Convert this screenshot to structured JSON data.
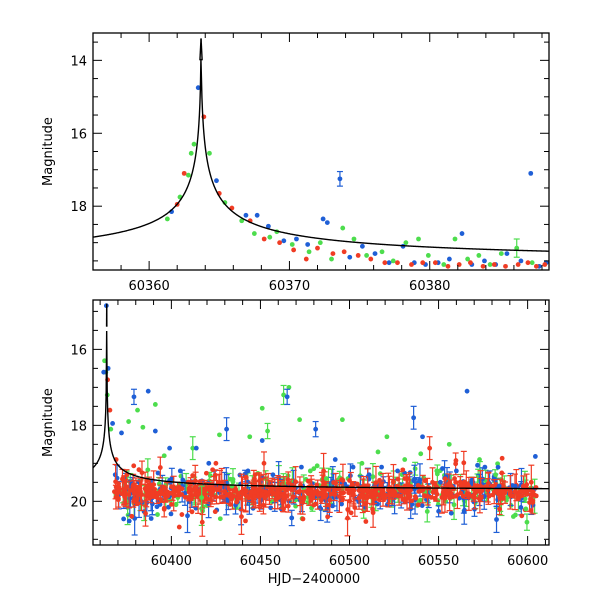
{
  "colors": {
    "green": "#4ddd4d",
    "blue": "#1f5fd6",
    "red": "#f03c24",
    "model": "#000000"
  },
  "chart_data": [
    {
      "type": "scatter",
      "ylabel": "Magnitude",
      "xlabel": "",
      "xlim": [
        60356,
        60388.5
      ],
      "ylim": [
        19.75,
        13.25
      ],
      "xticks": [
        60360,
        60370,
        60380
      ],
      "yticks": [
        14,
        16,
        18
      ],
      "peak": {
        "t0": 60363.7,
        "mag": 13.4,
        "base": 19.65
      },
      "series": [
        {
          "color": "green",
          "points": [
            [
              60361.3,
              18.35,
              0
            ],
            [
              60362.2,
              17.75,
              0
            ],
            [
              60362.8,
              17.15,
              0
            ],
            [
              60363.0,
              16.55,
              0
            ],
            [
              60363.2,
              16.3,
              0
            ],
            [
              60364.3,
              16.55,
              0
            ],
            [
              60365.4,
              17.9,
              0
            ],
            [
              60366.6,
              18.4,
              0
            ],
            [
              60367.5,
              18.75,
              0
            ],
            [
              60368.6,
              18.85,
              0
            ],
            [
              60369.1,
              18.7,
              0
            ],
            [
              60370.2,
              19.05,
              0
            ],
            [
              60371.4,
              19.25,
              0
            ],
            [
              60372.2,
              19.0,
              0
            ],
            [
              60373.0,
              19.45,
              0
            ],
            [
              60373.8,
              18.6,
              0
            ],
            [
              60374.6,
              18.9,
              0
            ],
            [
              60375.5,
              19.35,
              0
            ],
            [
              60376.6,
              19.25,
              0
            ],
            [
              60377.4,
              19.5,
              0
            ],
            [
              60378.3,
              19.0,
              0
            ],
            [
              60379.2,
              18.9,
              0
            ],
            [
              60379.9,
              19.35,
              0
            ],
            [
              60381.0,
              19.6,
              0
            ],
            [
              60381.8,
              18.9,
              0
            ],
            [
              60382.7,
              19.45,
              0
            ],
            [
              60383.5,
              19.35,
              0
            ],
            [
              60384.3,
              19.6,
              0
            ],
            [
              60385.1,
              19.3,
              0
            ],
            [
              60386.2,
              19.15,
              0.25
            ],
            [
              60387.3,
              19.55,
              0
            ]
          ]
        },
        {
          "color": "blue",
          "points": [
            [
              60361.6,
              18.15,
              0
            ],
            [
              60363.5,
              14.75,
              0
            ],
            [
              60364.8,
              17.3,
              0
            ],
            [
              60366.9,
              18.25,
              0
            ],
            [
              60367.7,
              18.25,
              0
            ],
            [
              60368.5,
              18.55,
              0
            ],
            [
              60369.6,
              18.95,
              0
            ],
            [
              60370.5,
              18.9,
              0
            ],
            [
              60371.3,
              19.05,
              0
            ],
            [
              60372.4,
              18.35,
              0
            ],
            [
              60372.7,
              18.45,
              0
            ],
            [
              60373.6,
              17.25,
              0.2
            ],
            [
              60374.3,
              19.4,
              0
            ],
            [
              60375.2,
              19.1,
              0
            ],
            [
              60376.1,
              19.3,
              0
            ],
            [
              60377.1,
              19.55,
              0
            ],
            [
              60378.1,
              19.1,
              0
            ],
            [
              60378.9,
              19.55,
              0
            ],
            [
              60379.7,
              19.6,
              0
            ],
            [
              60380.6,
              19.55,
              0
            ],
            [
              60381.4,
              19.45,
              0
            ],
            [
              60382.3,
              18.75,
              0
            ],
            [
              60383.0,
              19.6,
              0
            ],
            [
              60383.9,
              19.5,
              0
            ],
            [
              60384.7,
              19.6,
              0
            ],
            [
              60385.5,
              19.3,
              0
            ],
            [
              60386.5,
              19.5,
              0
            ],
            [
              60387.2,
              17.1,
              0
            ],
            [
              60387.8,
              19.65,
              0
            ],
            [
              60388.3,
              19.55,
              0
            ]
          ]
        },
        {
          "color": "red",
          "points": [
            [
              60362.0,
              17.95,
              0
            ],
            [
              60362.5,
              17.1,
              0
            ],
            [
              60363.9,
              15.55,
              0
            ],
            [
              60365.0,
              17.65,
              0
            ],
            [
              60365.9,
              18.05,
              0
            ],
            [
              60367.2,
              18.4,
              0
            ],
            [
              60368.2,
              18.9,
              0
            ],
            [
              60369.3,
              19.0,
              0
            ],
            [
              60370.3,
              19.2,
              0
            ],
            [
              60371.2,
              19.45,
              0
            ],
            [
              60372.0,
              19.15,
              0
            ],
            [
              60373.1,
              19.3,
              0
            ],
            [
              60373.9,
              19.25,
              0
            ],
            [
              60374.9,
              19.35,
              0
            ],
            [
              60375.8,
              19.45,
              0
            ],
            [
              60376.8,
              19.55,
              0
            ],
            [
              60377.7,
              19.55,
              0
            ],
            [
              60378.7,
              19.6,
              0
            ],
            [
              60379.5,
              19.55,
              0
            ],
            [
              60380.4,
              19.55,
              0
            ],
            [
              60381.3,
              19.65,
              0
            ],
            [
              60382.1,
              19.6,
              0
            ],
            [
              60382.9,
              19.55,
              0
            ],
            [
              60383.8,
              19.65,
              0
            ],
            [
              60384.6,
              19.6,
              0
            ],
            [
              60385.4,
              19.65,
              0
            ],
            [
              60386.3,
              19.6,
              0
            ],
            [
              60387.0,
              19.55,
              0
            ],
            [
              60387.6,
              19.65,
              0
            ],
            [
              60388.2,
              19.6,
              0
            ]
          ]
        }
      ]
    },
    {
      "type": "scatter",
      "ylabel": "Magnitude",
      "xlabel": "HJD−2400000",
      "xlim": [
        60356,
        60612
      ],
      "ylim": [
        21.15,
        14.7
      ],
      "xticks": [
        60400,
        60450,
        60500,
        60550,
        60600
      ],
      "yticks": [
        16,
        18,
        20
      ],
      "peak": {
        "t0": 60363.7,
        "mag": 14.8,
        "base": 19.75
      },
      "dense": {
        "start": 60368,
        "end": 60605,
        "scatter": 0.45,
        "baseline": 19.75
      },
      "series": [
        {
          "color": "green",
          "points": [
            [
              60362.5,
              16.3,
              0
            ],
            [
              60363.2,
              16.6,
              0
            ],
            [
              60364.0,
              17.2,
              0
            ],
            [
              60366.0,
              18.1,
              0
            ],
            [
              60376.0,
              17.9,
              0
            ],
            [
              60381.0,
              17.6,
              0
            ],
            [
              60384.0,
              18.05,
              0
            ],
            [
              60391.0,
              17.45,
              0
            ],
            [
              60396.0,
              18.8,
              0
            ],
            [
              60412.0,
              18.6,
              0.3
            ],
            [
              60417.0,
              19.9,
              0.3
            ],
            [
              60427.0,
              18.25,
              0
            ],
            [
              60434.0,
              19.6,
              0
            ],
            [
              60444.0,
              18.3,
              0
            ],
            [
              60451.0,
              17.55,
              0
            ],
            [
              60454.0,
              18.15,
              0.2
            ],
            [
              60463.0,
              17.2,
              0.25
            ],
            [
              60466.0,
              17.0,
              0
            ],
            [
              60472.0,
              17.85,
              0
            ],
            [
              60478.0,
              19.2,
              0
            ],
            [
              60487.0,
              19.4,
              0
            ],
            [
              60496.0,
              17.85,
              0
            ],
            [
              60507.0,
              19.0,
              0
            ],
            [
              60516.0,
              18.7,
              0
            ],
            [
              60521.0,
              18.3,
              0
            ],
            [
              60531.0,
              18.9,
              0
            ],
            [
              60540.0,
              18.75,
              0
            ],
            [
              60549.0,
              19.2,
              0
            ],
            [
              60556.0,
              18.5,
              0
            ],
            [
              60573.0,
              18.9,
              0
            ],
            [
              60582.0,
              19.3,
              0
            ],
            [
              60592.0,
              20.4,
              0
            ],
            [
              60599.0,
              20.2,
              0
            ]
          ]
        },
        {
          "color": "blue",
          "points": [
            [
              60362.0,
              16.6,
              0
            ],
            [
              60363.5,
              14.85,
              0
            ],
            [
              60364.5,
              16.5,
              0
            ],
            [
              60367.0,
              17.95,
              0
            ],
            [
              60372.0,
              18.2,
              0
            ],
            [
              60379.0,
              17.25,
              0.2
            ],
            [
              60387.0,
              17.1,
              0
            ],
            [
              60391.0,
              18.15,
              0
            ],
            [
              60399.0,
              18.6,
              0
            ],
            [
              60405.0,
              19.2,
              0
            ],
            [
              60414.0,
              18.6,
              0
            ],
            [
              60421.0,
              19.0,
              0
            ],
            [
              60431.0,
              18.1,
              0.3
            ],
            [
              60443.0,
              19.2,
              0
            ],
            [
              60451.0,
              18.4,
              0
            ],
            [
              60457.0,
              19.3,
              0
            ],
            [
              60465.0,
              17.25,
              0.2
            ],
            [
              60473.0,
              19.1,
              0
            ],
            [
              60481.0,
              18.1,
              0.2
            ],
            [
              60492.0,
              18.9,
              0
            ],
            [
              60502.0,
              19.1,
              0
            ],
            [
              60511.0,
              19.3,
              0
            ],
            [
              60518.0,
              19.1,
              0
            ],
            [
              60527.0,
              19.2,
              0
            ],
            [
              60536.0,
              17.8,
              0.3
            ],
            [
              60541.0,
              18.3,
              0
            ],
            [
              60551.0,
              19.5,
              0
            ],
            [
              60560.0,
              19.2,
              0
            ],
            [
              60566.0,
              17.1,
              0
            ],
            [
              60576.0,
              19.1,
              0
            ],
            [
              60584.0,
              19.6,
              0
            ],
            [
              60593.0,
              19.6,
              0
            ]
          ]
        },
        {
          "color": "red",
          "points": [
            [
              60364.2,
              16.8,
              0
            ],
            [
              60365.5,
              17.6,
              0
            ],
            [
              60369.0,
              18.9,
              0
            ],
            [
              60375.0,
              19.3,
              0
            ],
            [
              60398.0,
              19.8,
              0
            ],
            [
              60425.0,
              19.0,
              0
            ],
            [
              60447.0,
              19.3,
              0
            ],
            [
              60452.0,
              19.0,
              0.3
            ],
            [
              60463.0,
              20.2,
              0
            ],
            [
              60480.0,
              20.1,
              0
            ],
            [
              60512.0,
              19.8,
              0
            ],
            [
              60531.0,
              19.4,
              0
            ],
            [
              60545.0,
              18.6,
              0.3
            ],
            [
              60559.0,
              19.4,
              0
            ],
            [
              60574.0,
              19.9,
              0
            ],
            [
              60598.0,
              19.7,
              0
            ]
          ]
        }
      ]
    }
  ]
}
